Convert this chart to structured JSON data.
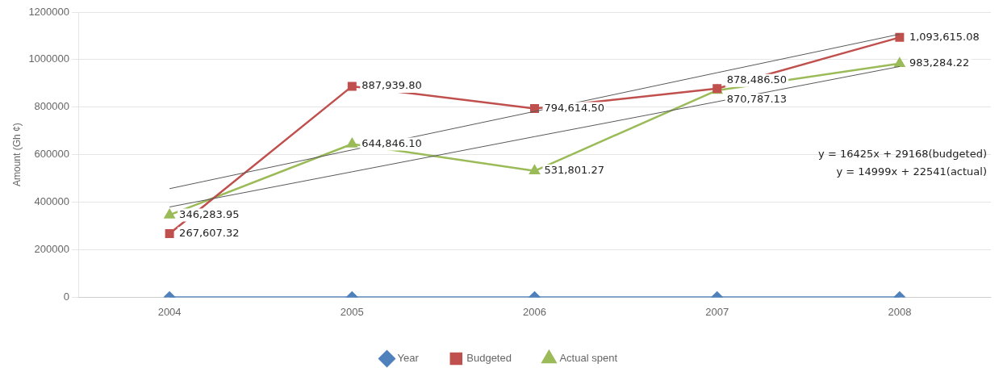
{
  "chart_data": {
    "type": "line",
    "ylabel": "Amount (Gh ¢)",
    "categories": [
      "2004",
      "2005",
      "2006",
      "2007",
      "2008"
    ],
    "ylim": [
      0,
      1200000
    ],
    "yticks": [
      0,
      200000,
      400000,
      600000,
      800000,
      1000000,
      1200000
    ],
    "grid": "y",
    "legend": "bottom",
    "series": [
      {
        "name": "Year",
        "color": "#4f81bd",
        "marker": "diamond",
        "values": [
          0,
          0,
          0,
          0,
          0
        ]
      },
      {
        "name": "Budgeted",
        "color": "#c0504d",
        "marker": "square",
        "values": [
          267607.32,
          887939.8,
          794614.5,
          878486.5,
          1093615.08
        ],
        "value_labels": [
          "267,607.32",
          "887,939.80",
          "794,614.50",
          "878,486.50",
          "1,093,615.08"
        ]
      },
      {
        "name": "Actual spent",
        "color": "#9bbb59",
        "marker": "triangle",
        "values": [
          346283.95,
          644846.1,
          531801.27,
          870787.13,
          983284.22
        ],
        "value_labels": [
          "346,283.95",
          "644,846.10",
          "531,801.27",
          "870,787.13",
          "983,284.22"
        ]
      },
      {
        "type": "line",
        "color": "#595959",
        "marker": "none",
        "values": [
          457000,
          620000,
          782000,
          945000,
          1107000
        ]
      },
      {
        "type": "line",
        "color": "#595959",
        "marker": "none",
        "values": [
          380000,
          528000,
          676000,
          823000,
          971000
        ]
      }
    ],
    "annotations": [
      "y = 16425x + 29168(budgeted)",
      "y = 14999x + 22541(actual)"
    ]
  }
}
